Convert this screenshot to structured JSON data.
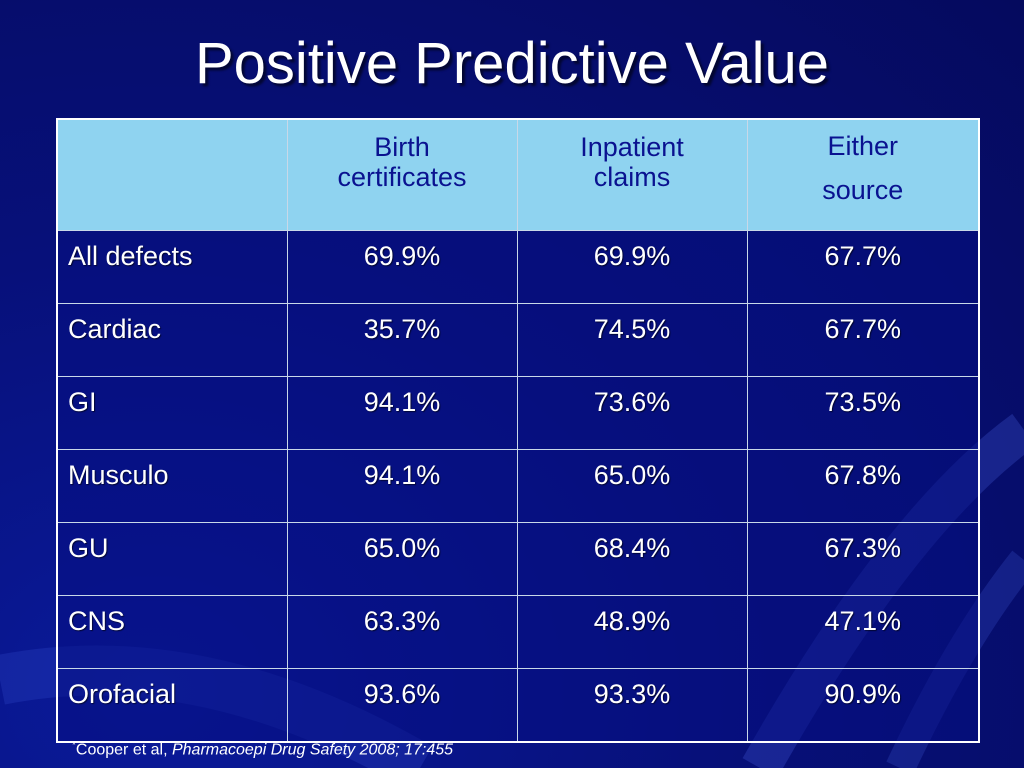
{
  "slide": {
    "title": "Positive Predictive Value"
  },
  "table": {
    "headers": [
      "",
      "Birth certificates",
      "Inpatient claims",
      "Either source"
    ],
    "header_lines": {
      "birth": [
        "Birth",
        "certificates"
      ],
      "inpatient": [
        "Inpatient",
        "claims"
      ],
      "either": [
        "Either",
        "source"
      ]
    },
    "rows": [
      {
        "label": "All defects",
        "birth": "69.9%",
        "inpatient": "69.9%",
        "either": "67.7%"
      },
      {
        "label": "Cardiac",
        "birth": "35.7%",
        "inpatient": "74.5%",
        "either": "67.7%"
      },
      {
        "label": "GI",
        "birth": "94.1%",
        "inpatient": "73.6%",
        "either": "73.5%"
      },
      {
        "label": "Musculo",
        "birth": "94.1%",
        "inpatient": "65.0%",
        "either": "67.8%"
      },
      {
        "label": "GU",
        "birth": "65.0%",
        "inpatient": "68.4%",
        "either": "67.3%"
      },
      {
        "label": "CNS",
        "birth": "63.3%",
        "inpatient": "48.9%",
        "either": "47.1%"
      },
      {
        "label": "Orofacial",
        "birth": "93.6%",
        "inpatient": "93.3%",
        "either": "90.9%"
      }
    ]
  },
  "footnote": {
    "marker": "*",
    "author": "Cooper et al, ",
    "citation": "Pharmacoepi Drug Safety 2008; 17:455"
  },
  "colors": {
    "background": "#07107a",
    "header_fill": "#8fd3f0",
    "header_text": "#0a1290",
    "text": "#ffffff"
  }
}
